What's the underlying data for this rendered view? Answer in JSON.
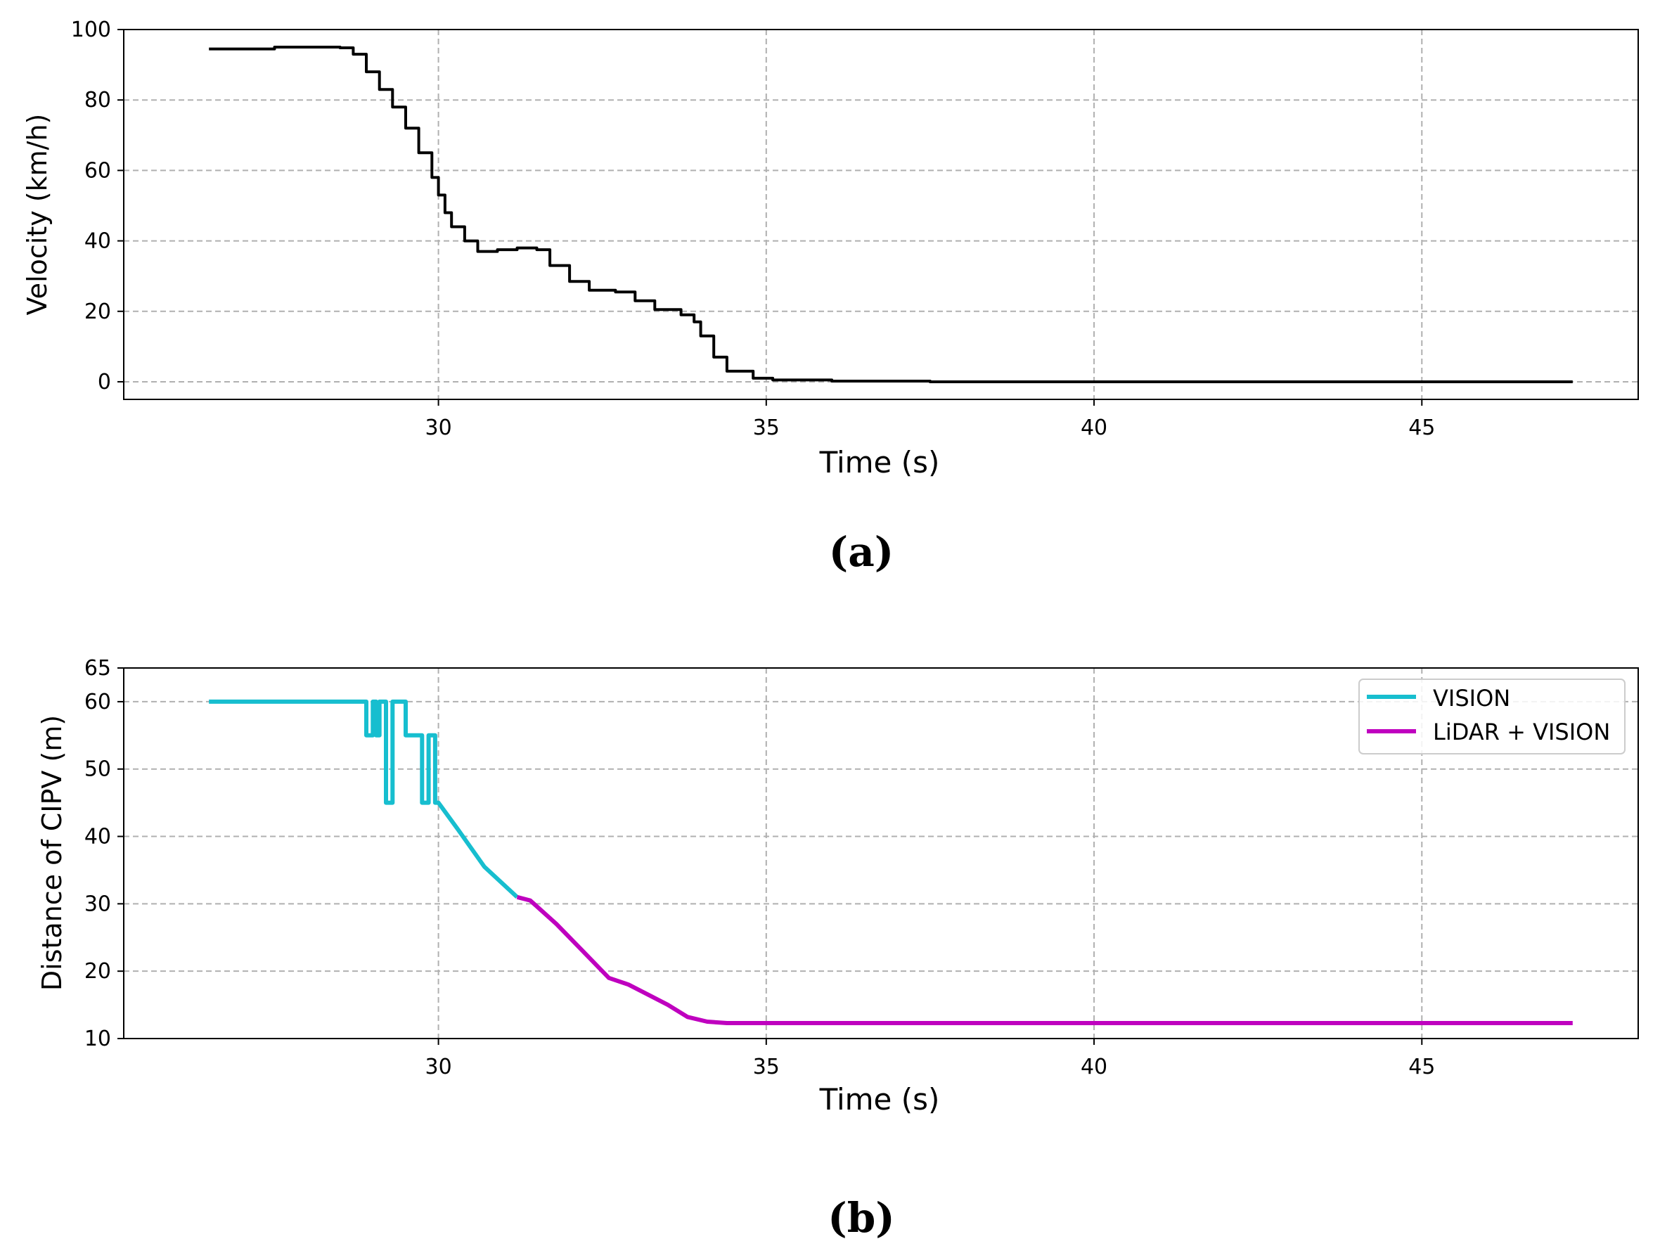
{
  "chart_data": [
    {
      "panel": "(a)",
      "type": "line",
      "title": "",
      "xlabel": "Time (s)",
      "ylabel": "Velocity (km/h)",
      "xlim": [
        25.2,
        48.3
      ],
      "ylim": [
        -5,
        100
      ],
      "xticks": [
        30,
        35,
        40,
        45
      ],
      "yticks": [
        0,
        20,
        40,
        60,
        80,
        100
      ],
      "grid": true,
      "series": [
        {
          "name": "Velocity",
          "color": "#000000",
          "step": true,
          "points": [
            [
              26.5,
              94.5
            ],
            [
              27.5,
              95.0
            ],
            [
              28.5,
              94.8
            ],
            [
              28.7,
              93.0
            ],
            [
              28.9,
              88.0
            ],
            [
              29.1,
              83.0
            ],
            [
              29.3,
              78.0
            ],
            [
              29.5,
              72.0
            ],
            [
              29.7,
              65.0
            ],
            [
              29.9,
              58.0
            ],
            [
              30.0,
              53.0
            ],
            [
              30.1,
              48.0
            ],
            [
              30.2,
              44.0
            ],
            [
              30.4,
              40.0
            ],
            [
              30.6,
              37.0
            ],
            [
              30.9,
              37.5
            ],
            [
              31.2,
              38.0
            ],
            [
              31.5,
              37.5
            ],
            [
              31.7,
              33.0
            ],
            [
              32.0,
              28.5
            ],
            [
              32.3,
              26.0
            ],
            [
              32.7,
              25.5
            ],
            [
              33.0,
              23.0
            ],
            [
              33.3,
              20.5
            ],
            [
              33.7,
              19.0
            ],
            [
              33.9,
              17.0
            ],
            [
              34.0,
              13.0
            ],
            [
              34.2,
              7.0
            ],
            [
              34.4,
              3.0
            ],
            [
              34.8,
              1.0
            ],
            [
              35.1,
              0.5
            ],
            [
              36.0,
              0.2
            ],
            [
              37.5,
              0.0
            ],
            [
              40.0,
              0.0
            ],
            [
              45.0,
              0.0
            ],
            [
              47.3,
              0.0
            ]
          ]
        }
      ]
    },
    {
      "panel": "(b)",
      "type": "line",
      "title": "",
      "xlabel": "Time (s)",
      "ylabel": "Distance of CIPV (m)",
      "xlim": [
        25.2,
        48.3
      ],
      "ylim": [
        10,
        65
      ],
      "xticks": [
        30,
        35,
        40,
        45
      ],
      "yticks": [
        10,
        20,
        30,
        40,
        50,
        60,
        65
      ],
      "grid": true,
      "legend": "top-right",
      "series": [
        {
          "name": "VISION",
          "color": "#17becf",
          "points": [
            [
              26.5,
              60
            ],
            [
              28.9,
              60
            ],
            [
              28.9,
              55
            ],
            [
              29.0,
              55
            ],
            [
              29.0,
              60
            ],
            [
              29.05,
              60
            ],
            [
              29.05,
              55
            ],
            [
              29.1,
              55
            ],
            [
              29.1,
              60
            ],
            [
              29.2,
              60
            ],
            [
              29.2,
              45
            ],
            [
              29.3,
              45
            ],
            [
              29.3,
              60
            ],
            [
              29.5,
              60
            ],
            [
              29.5,
              55
            ],
            [
              29.75,
              55
            ],
            [
              29.75,
              45
            ],
            [
              29.85,
              45
            ],
            [
              29.85,
              55
            ],
            [
              29.95,
              55
            ],
            [
              29.95,
              45
            ],
            [
              30.0,
              45
            ],
            [
              30.3,
              41.0
            ],
            [
              30.7,
              35.5
            ],
            [
              31.2,
              31.0
            ]
          ]
        },
        {
          "name": "LiDAR + VISION",
          "color": "#bf00bf",
          "points": [
            [
              31.2,
              31.0
            ],
            [
              31.4,
              30.5
            ],
            [
              31.8,
              27.0
            ],
            [
              32.2,
              23.0
            ],
            [
              32.6,
              19.0
            ],
            [
              32.9,
              18.0
            ],
            [
              33.2,
              16.5
            ],
            [
              33.5,
              15.0
            ],
            [
              33.8,
              13.2
            ],
            [
              34.1,
              12.5
            ],
            [
              34.4,
              12.3
            ],
            [
              35.0,
              12.3
            ],
            [
              40.0,
              12.3
            ],
            [
              45.0,
              12.3
            ],
            [
              47.3,
              12.3
            ]
          ]
        }
      ]
    }
  ],
  "captions": {
    "a": "(a)",
    "b": "(b)"
  }
}
